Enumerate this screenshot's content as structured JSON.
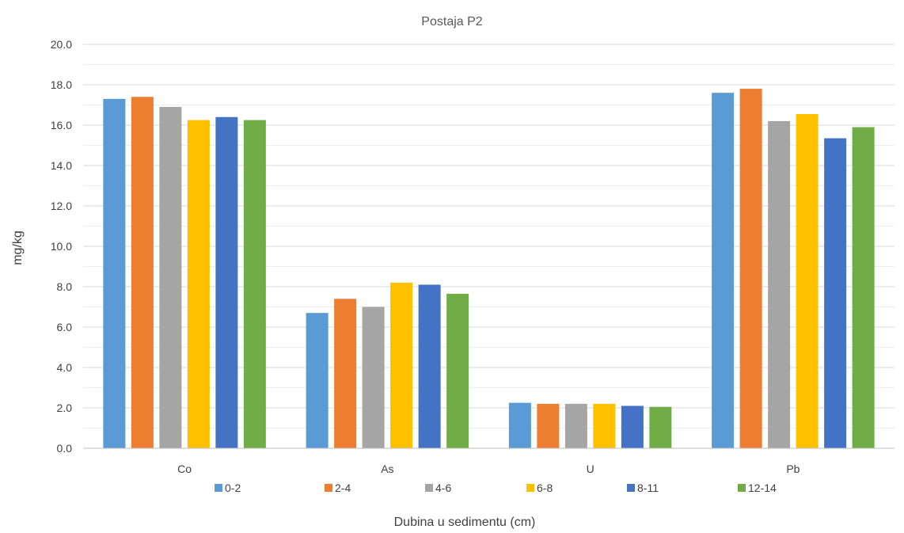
{
  "chart_data": {
    "type": "bar",
    "title": "Postaja P2",
    "xlabel": "Dubina u sedimentu (cm)",
    "ylabel": "mg/kg",
    "ylim": [
      0,
      20
    ],
    "ytick_step": 2,
    "ytick_labels": [
      "0.0",
      "2.0",
      "4.0",
      "6.0",
      "8.0",
      "10.0",
      "12.0",
      "14.0",
      "16.0",
      "18.0",
      "20.0"
    ],
    "grid": true,
    "legend_position": "bottom",
    "categories": [
      "Co",
      "As",
      "U",
      "Pb"
    ],
    "series": [
      {
        "name": "0-2",
        "color": "#5B9BD5",
        "values": [
          17.3,
          6.7,
          2.25,
          17.6
        ]
      },
      {
        "name": "2-4",
        "color": "#ED7D31",
        "values": [
          17.4,
          7.4,
          2.2,
          17.8
        ]
      },
      {
        "name": "4-6",
        "color": "#A5A5A5",
        "values": [
          16.9,
          7.0,
          2.2,
          16.2
        ]
      },
      {
        "name": "6-8",
        "color": "#FFC000",
        "values": [
          16.25,
          8.2,
          2.2,
          16.55
        ]
      },
      {
        "name": "8-11",
        "color": "#4472C4",
        "values": [
          16.4,
          8.1,
          2.1,
          15.35
        ]
      },
      {
        "name": "12-14",
        "color": "#70AD47",
        "values": [
          16.25,
          7.65,
          2.05,
          15.9
        ]
      }
    ]
  }
}
